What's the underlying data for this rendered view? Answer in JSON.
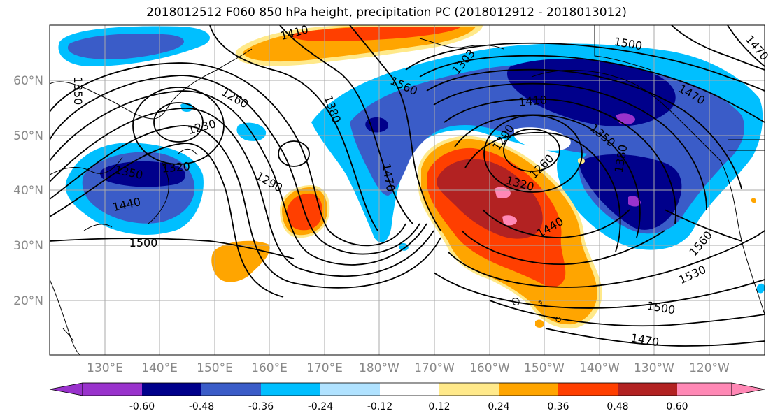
{
  "title": "2018012512 F060 850 hPa height, precipitation PC (2018012912 - 2018013012)",
  "map": {
    "lon_ticks": [
      "130°E",
      "140°E",
      "150°E",
      "160°E",
      "170°E",
      "180°W",
      "170°W",
      "160°W",
      "150°W",
      "140°W",
      "130°W",
      "120°W"
    ],
    "lat_ticks": [
      "20°N",
      "30°N",
      "40°N",
      "50°N",
      "60°N"
    ],
    "grid": true,
    "contour_labels": [
      "1410",
      "1350",
      "1260",
      "1230",
      "1380",
      "1560",
      "1303",
      "1500",
      "1470",
      "1410",
      "1290",
      "1350",
      "1260",
      "1350",
      "1320",
      "1290",
      "1470",
      "1320",
      "1440",
      "1440",
      "1500",
      "1560",
      "1530",
      "1500",
      "1470",
      "1380",
      "1470"
    ],
    "colors": {
      "purple": "#9932cc",
      "navy": "#00008b",
      "royal": "#3a5cc8",
      "sky": "#00bfff",
      "lightblue": "#b0e2ff",
      "yellow": "#ffe98a",
      "orange": "#ffa500",
      "redorange": "#ff3f00",
      "darkred": "#b22222",
      "pink": "#ff88b5"
    }
  },
  "colorbar": {
    "ticks": [
      "-0.60",
      "-0.48",
      "-0.36",
      "-0.24",
      "-0.12",
      "0.12",
      "0.24",
      "0.36",
      "0.48",
      "0.60"
    ],
    "colors": [
      "#9932cc",
      "#00008b",
      "#3a5cc8",
      "#00bfff",
      "#b0e2ff",
      "#ffffff",
      "#ffe98a",
      "#ffa500",
      "#ff3f00",
      "#b22222",
      "#ff88b5"
    ]
  }
}
